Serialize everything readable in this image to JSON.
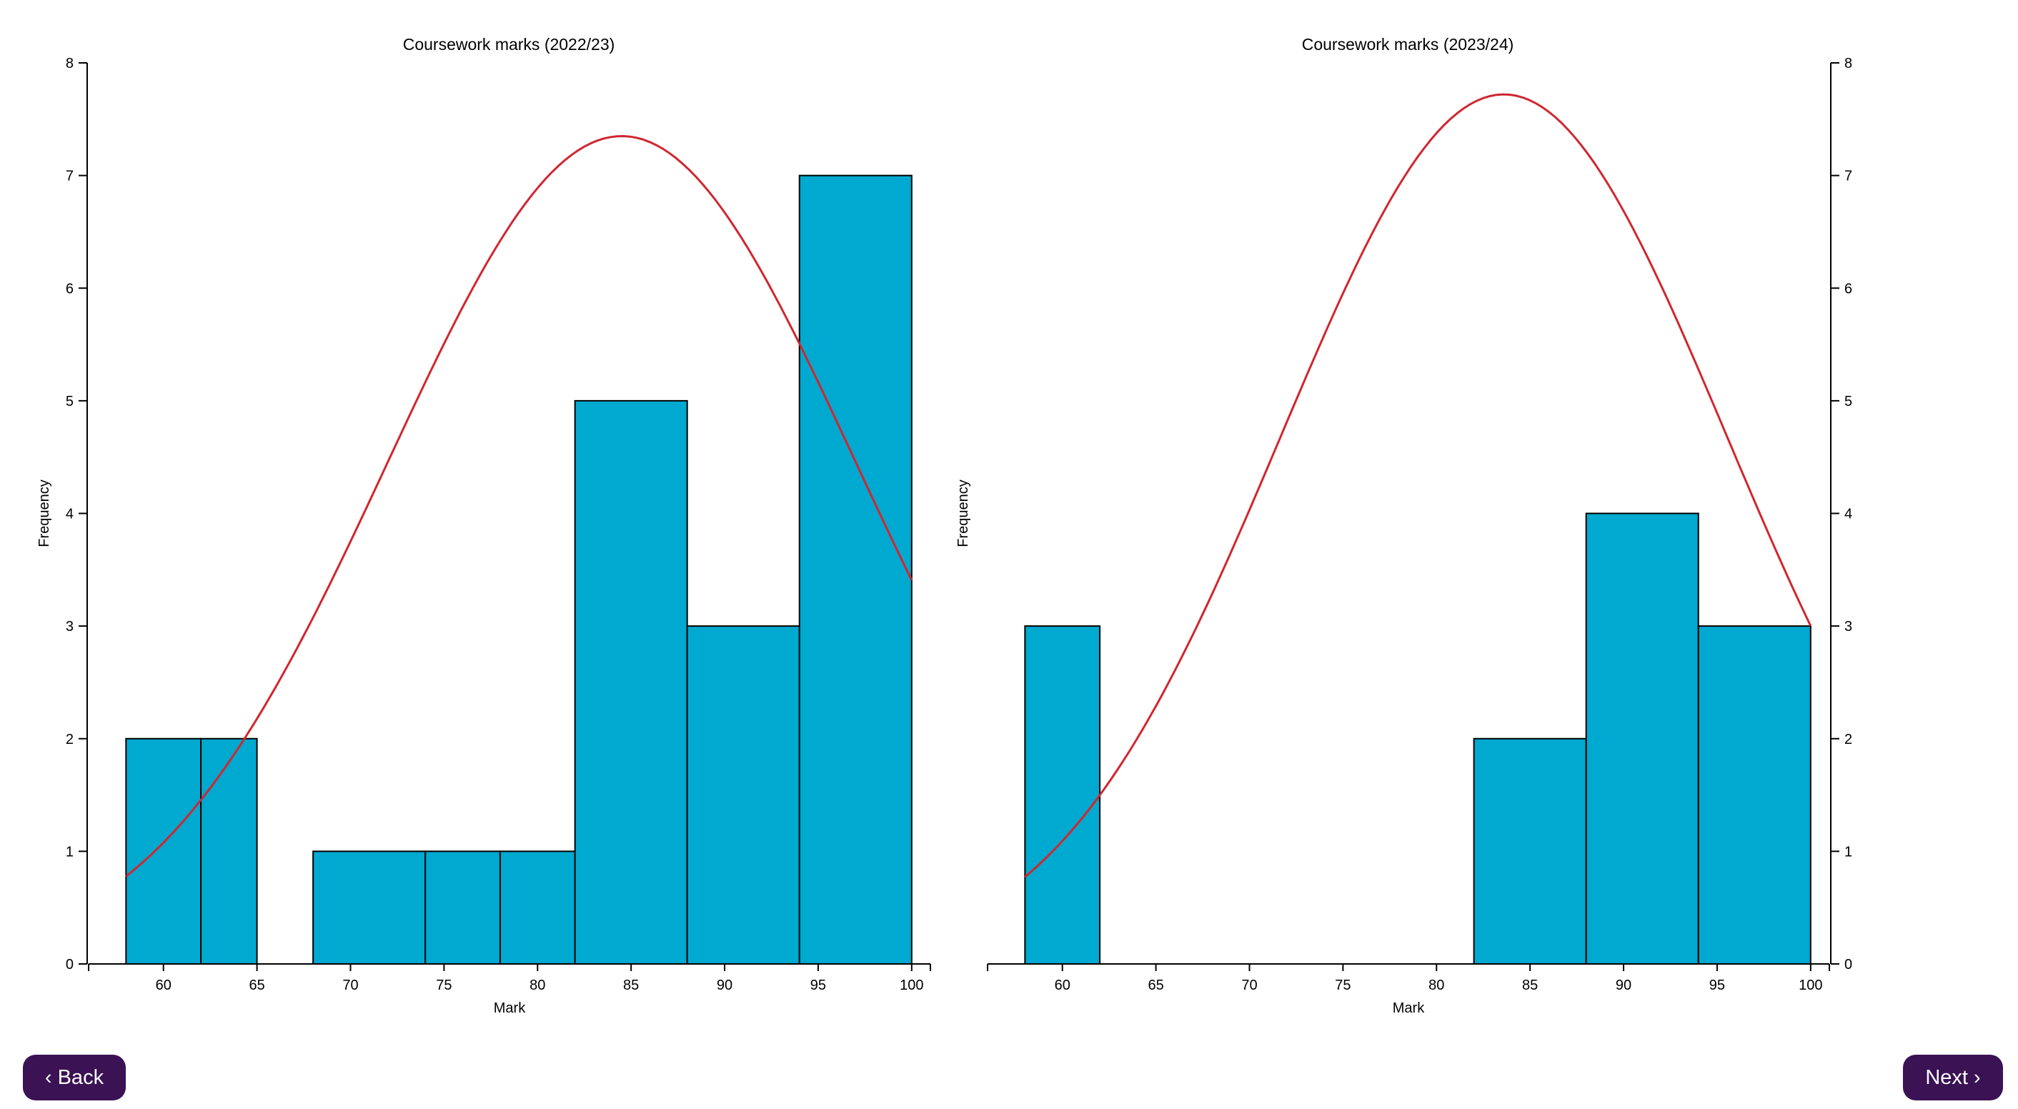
{
  "colors": {
    "bar_fill": "#00a9d0",
    "bar_stroke": "#000000",
    "curve": "#d02730",
    "button_bg": "#3b1254",
    "button_text": "#ffffff"
  },
  "navigation": {
    "back": {
      "icon": "chevron-left-icon",
      "glyph": "‹",
      "label": "Back"
    },
    "next": {
      "icon": "chevron-right-icon",
      "glyph": "›",
      "label": "Next"
    }
  },
  "chart_data": [
    {
      "type": "bar",
      "title": "Coursework marks (2022/23)",
      "xlabel": "Mark",
      "ylabel": "Frequency",
      "xlim": [
        56,
        101
      ],
      "ylim": [
        0,
        8
      ],
      "x_ticks": [
        60,
        65,
        70,
        75,
        80,
        85,
        90,
        95,
        100
      ],
      "y_ticks": [
        0,
        1,
        2,
        3,
        4,
        5,
        6,
        7,
        8
      ],
      "y_axis_side": "left",
      "bins": [
        {
          "x0": 58,
          "x1": 62,
          "count": 2
        },
        {
          "x0": 62,
          "x1": 65,
          "count": 2
        },
        {
          "x0": 68,
          "x1": 74,
          "count": 1
        },
        {
          "x0": 74,
          "x1": 78,
          "count": 1
        },
        {
          "x0": 78,
          "x1": 82,
          "count": 1
        },
        {
          "x0": 82,
          "x1": 88,
          "count": 5
        },
        {
          "x0": 88,
          "x1": 94,
          "count": 3
        },
        {
          "x0": 94,
          "x1": 100,
          "count": 7
        }
      ],
      "normal_curve": {
        "mean": 84.5,
        "sd": 12.5,
        "peak": 7.35,
        "x_range": [
          58,
          100
        ]
      }
    },
    {
      "type": "bar",
      "title": "Coursework marks (2023/24)",
      "xlabel": "Mark",
      "ylabel": "Frequency",
      "xlim": [
        56,
        101
      ],
      "ylim": [
        0,
        8
      ],
      "x_ticks": [
        60,
        65,
        70,
        75,
        80,
        85,
        90,
        95,
        100
      ],
      "y_ticks": [
        0,
        1,
        2,
        3,
        4,
        5,
        6,
        7,
        8
      ],
      "y_axis_side": "right",
      "bins": [
        {
          "x0": 58,
          "x1": 62,
          "count": 3
        },
        {
          "x0": 62,
          "x1": 82,
          "count": 0
        },
        {
          "x0": 82,
          "x1": 88,
          "count": 2
        },
        {
          "x0": 88,
          "x1": 94,
          "count": 4
        },
        {
          "x0": 94,
          "x1": 100,
          "count": 3
        }
      ],
      "normal_curve": {
        "mean": 83.6,
        "sd": 11.93,
        "peak": 7.72,
        "x_range": [
          58,
          100
        ]
      }
    }
  ]
}
